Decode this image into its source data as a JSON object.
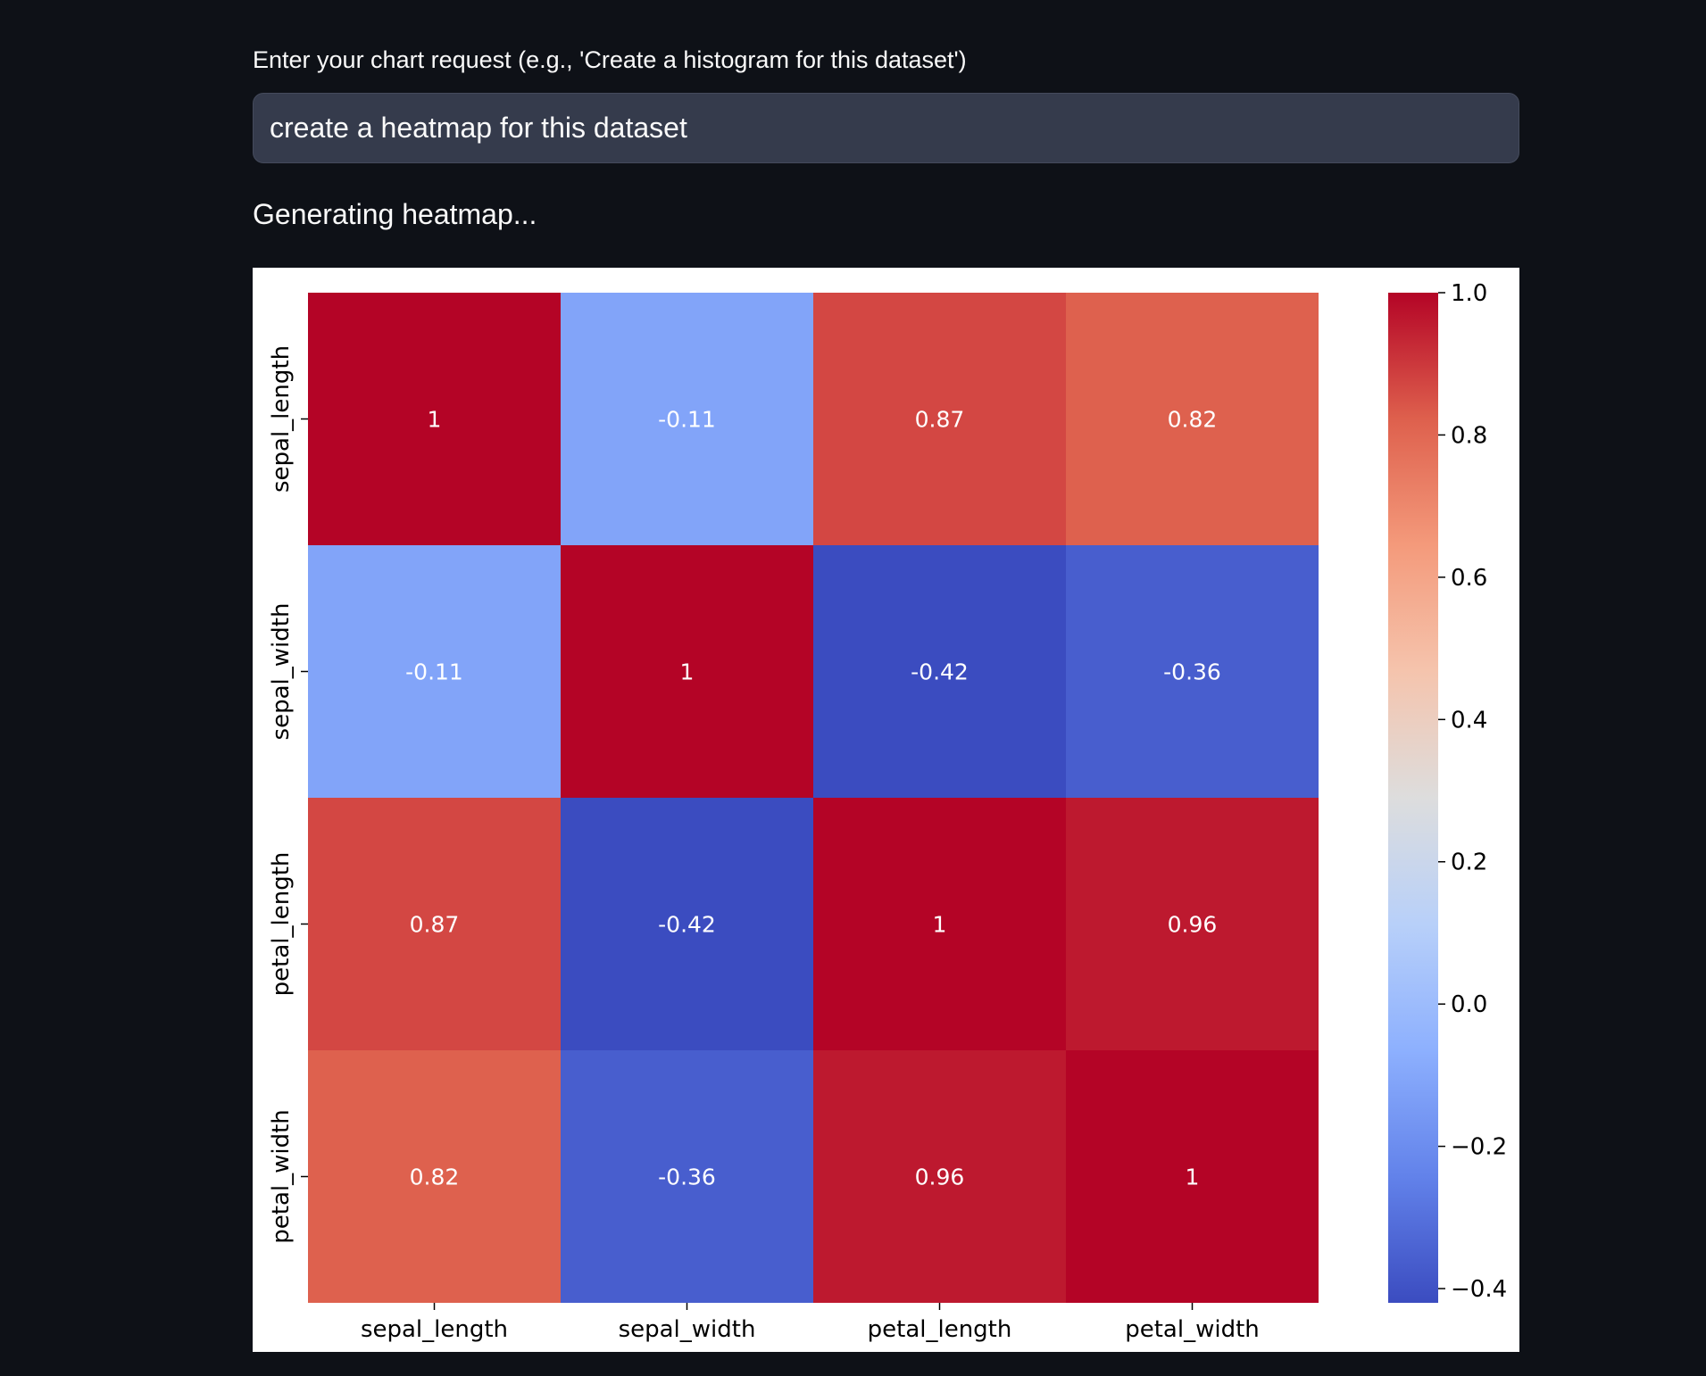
{
  "input": {
    "label": "Enter your chart request (e.g., 'Create a histogram for this dataset')",
    "value": "create a heatmap for this dataset"
  },
  "status": "Generating heatmap...",
  "chart_data": {
    "type": "heatmap",
    "x_labels": [
      "sepal_length",
      "sepal_width",
      "petal_length",
      "petal_width"
    ],
    "y_labels": [
      "sepal_length",
      "sepal_width",
      "petal_length",
      "petal_width"
    ],
    "values": [
      [
        1,
        -0.11,
        0.87,
        0.82
      ],
      [
        -0.11,
        1,
        -0.42,
        -0.36
      ],
      [
        0.87,
        -0.42,
        1,
        0.96
      ],
      [
        0.82,
        -0.36,
        0.96,
        1
      ]
    ],
    "cell_labels": [
      [
        "1",
        "-0.11",
        "0.87",
        "0.82"
      ],
      [
        "-0.11",
        "1",
        "-0.42",
        "-0.36"
      ],
      [
        "0.87",
        "-0.42",
        "1",
        "0.96"
      ],
      [
        "0.82",
        "-0.36",
        "0.96",
        "1"
      ]
    ],
    "colormap": "coolwarm",
    "colorbar": {
      "min": -0.42,
      "max": 1.0,
      "ticks": [
        1.0,
        0.8,
        0.6,
        0.4,
        0.2,
        0.0,
        -0.2,
        -0.4
      ],
      "tick_labels": [
        "1.0",
        "0.8",
        "0.6",
        "0.4",
        "0.2",
        "0.0",
        "−0.2",
        "−0.4"
      ]
    }
  }
}
